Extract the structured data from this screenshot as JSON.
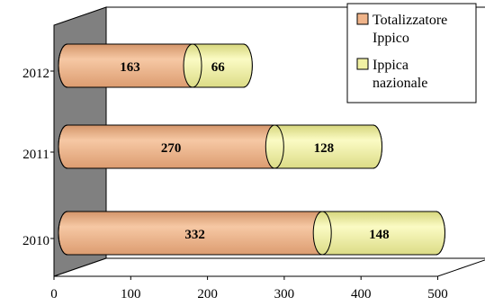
{
  "chart_data": {
    "type": "bar",
    "orientation": "horizontal",
    "stacked": true,
    "three_d": true,
    "categories": [
      "2010",
      "2011",
      "2012"
    ],
    "series": [
      {
        "name": "Totalizzatore Ippico",
        "values": [
          332,
          270,
          163
        ],
        "color": "#f0b48a"
      },
      {
        "name": "Ippica nazionale",
        "values": [
          148,
          128,
          66
        ],
        "color": "#f2f2a4"
      }
    ],
    "end_cap_color": "#7d7a3e",
    "back_wall_color": "#808080",
    "xlim": [
      0,
      500
    ],
    "x_ticks": [
      0,
      100,
      200,
      300,
      400,
      500
    ],
    "title": "",
    "xlabel": "",
    "ylabel": "",
    "legend": {
      "position": "top-right",
      "labels": [
        [
          "Totalizzatore",
          "Ippico"
        ],
        [
          "Ippica",
          "nazionale"
        ]
      ]
    },
    "data_labels": true
  }
}
